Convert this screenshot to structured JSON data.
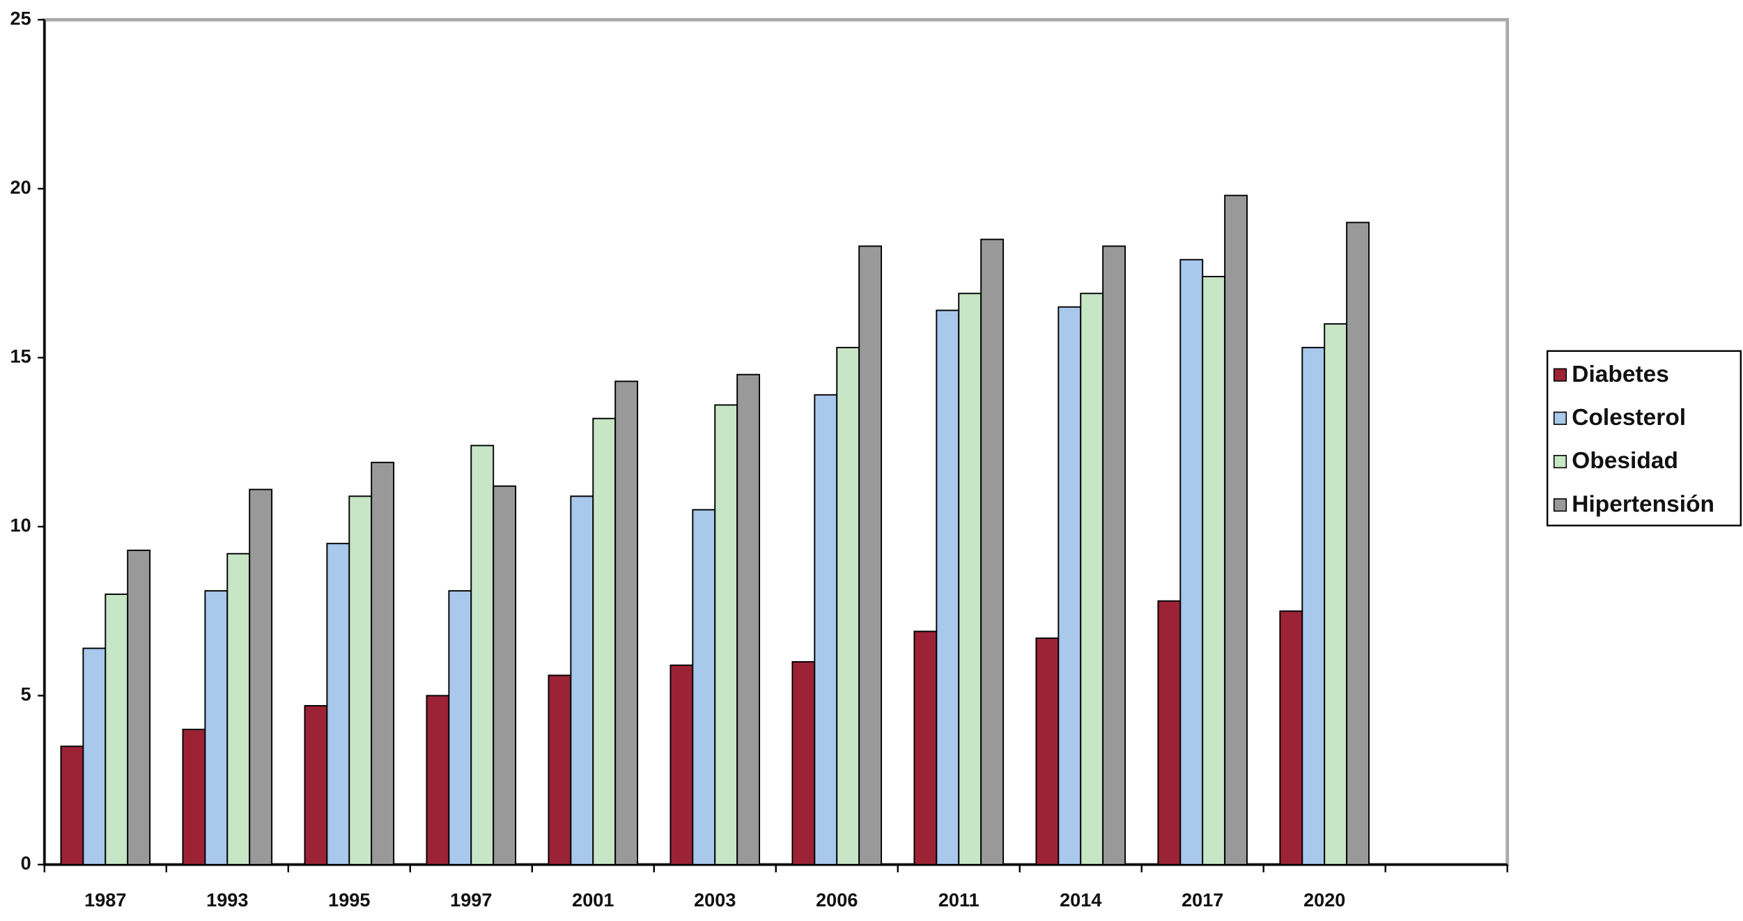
{
  "chart_data": {
    "type": "bar",
    "categories": [
      "1987",
      "1993",
      "1995",
      "1997",
      "2001",
      "2003",
      "2006",
      "2011",
      "2014",
      "2017",
      "2020",
      null
    ],
    "series": [
      {
        "name": "Diabetes",
        "color": "#9b2335",
        "values": [
          3.5,
          4.0,
          4.7,
          5.0,
          5.6,
          5.9,
          6.0,
          6.9,
          6.7,
          7.8,
          7.5,
          null
        ]
      },
      {
        "name": "Colesterol",
        "color": "#a8c8ec",
        "values": [
          6.4,
          8.1,
          9.5,
          8.1,
          10.9,
          10.5,
          13.9,
          16.4,
          16.5,
          17.9,
          15.3,
          null
        ]
      },
      {
        "name": "Obesidad",
        "color": "#c6e6c6",
        "values": [
          8.0,
          9.2,
          10.9,
          12.4,
          13.2,
          13.6,
          15.3,
          16.9,
          16.9,
          17.4,
          16.0,
          null
        ]
      },
      {
        "name": "Hipertensión",
        "color": "#999999",
        "values": [
          9.3,
          11.1,
          11.9,
          11.2,
          14.3,
          14.5,
          18.3,
          18.5,
          18.3,
          19.8,
          19.0,
          null
        ]
      }
    ],
    "ylim": [
      0,
      25
    ],
    "yticks": [
      0,
      5,
      10,
      15,
      20,
      25
    ],
    "legend": "right"
  }
}
